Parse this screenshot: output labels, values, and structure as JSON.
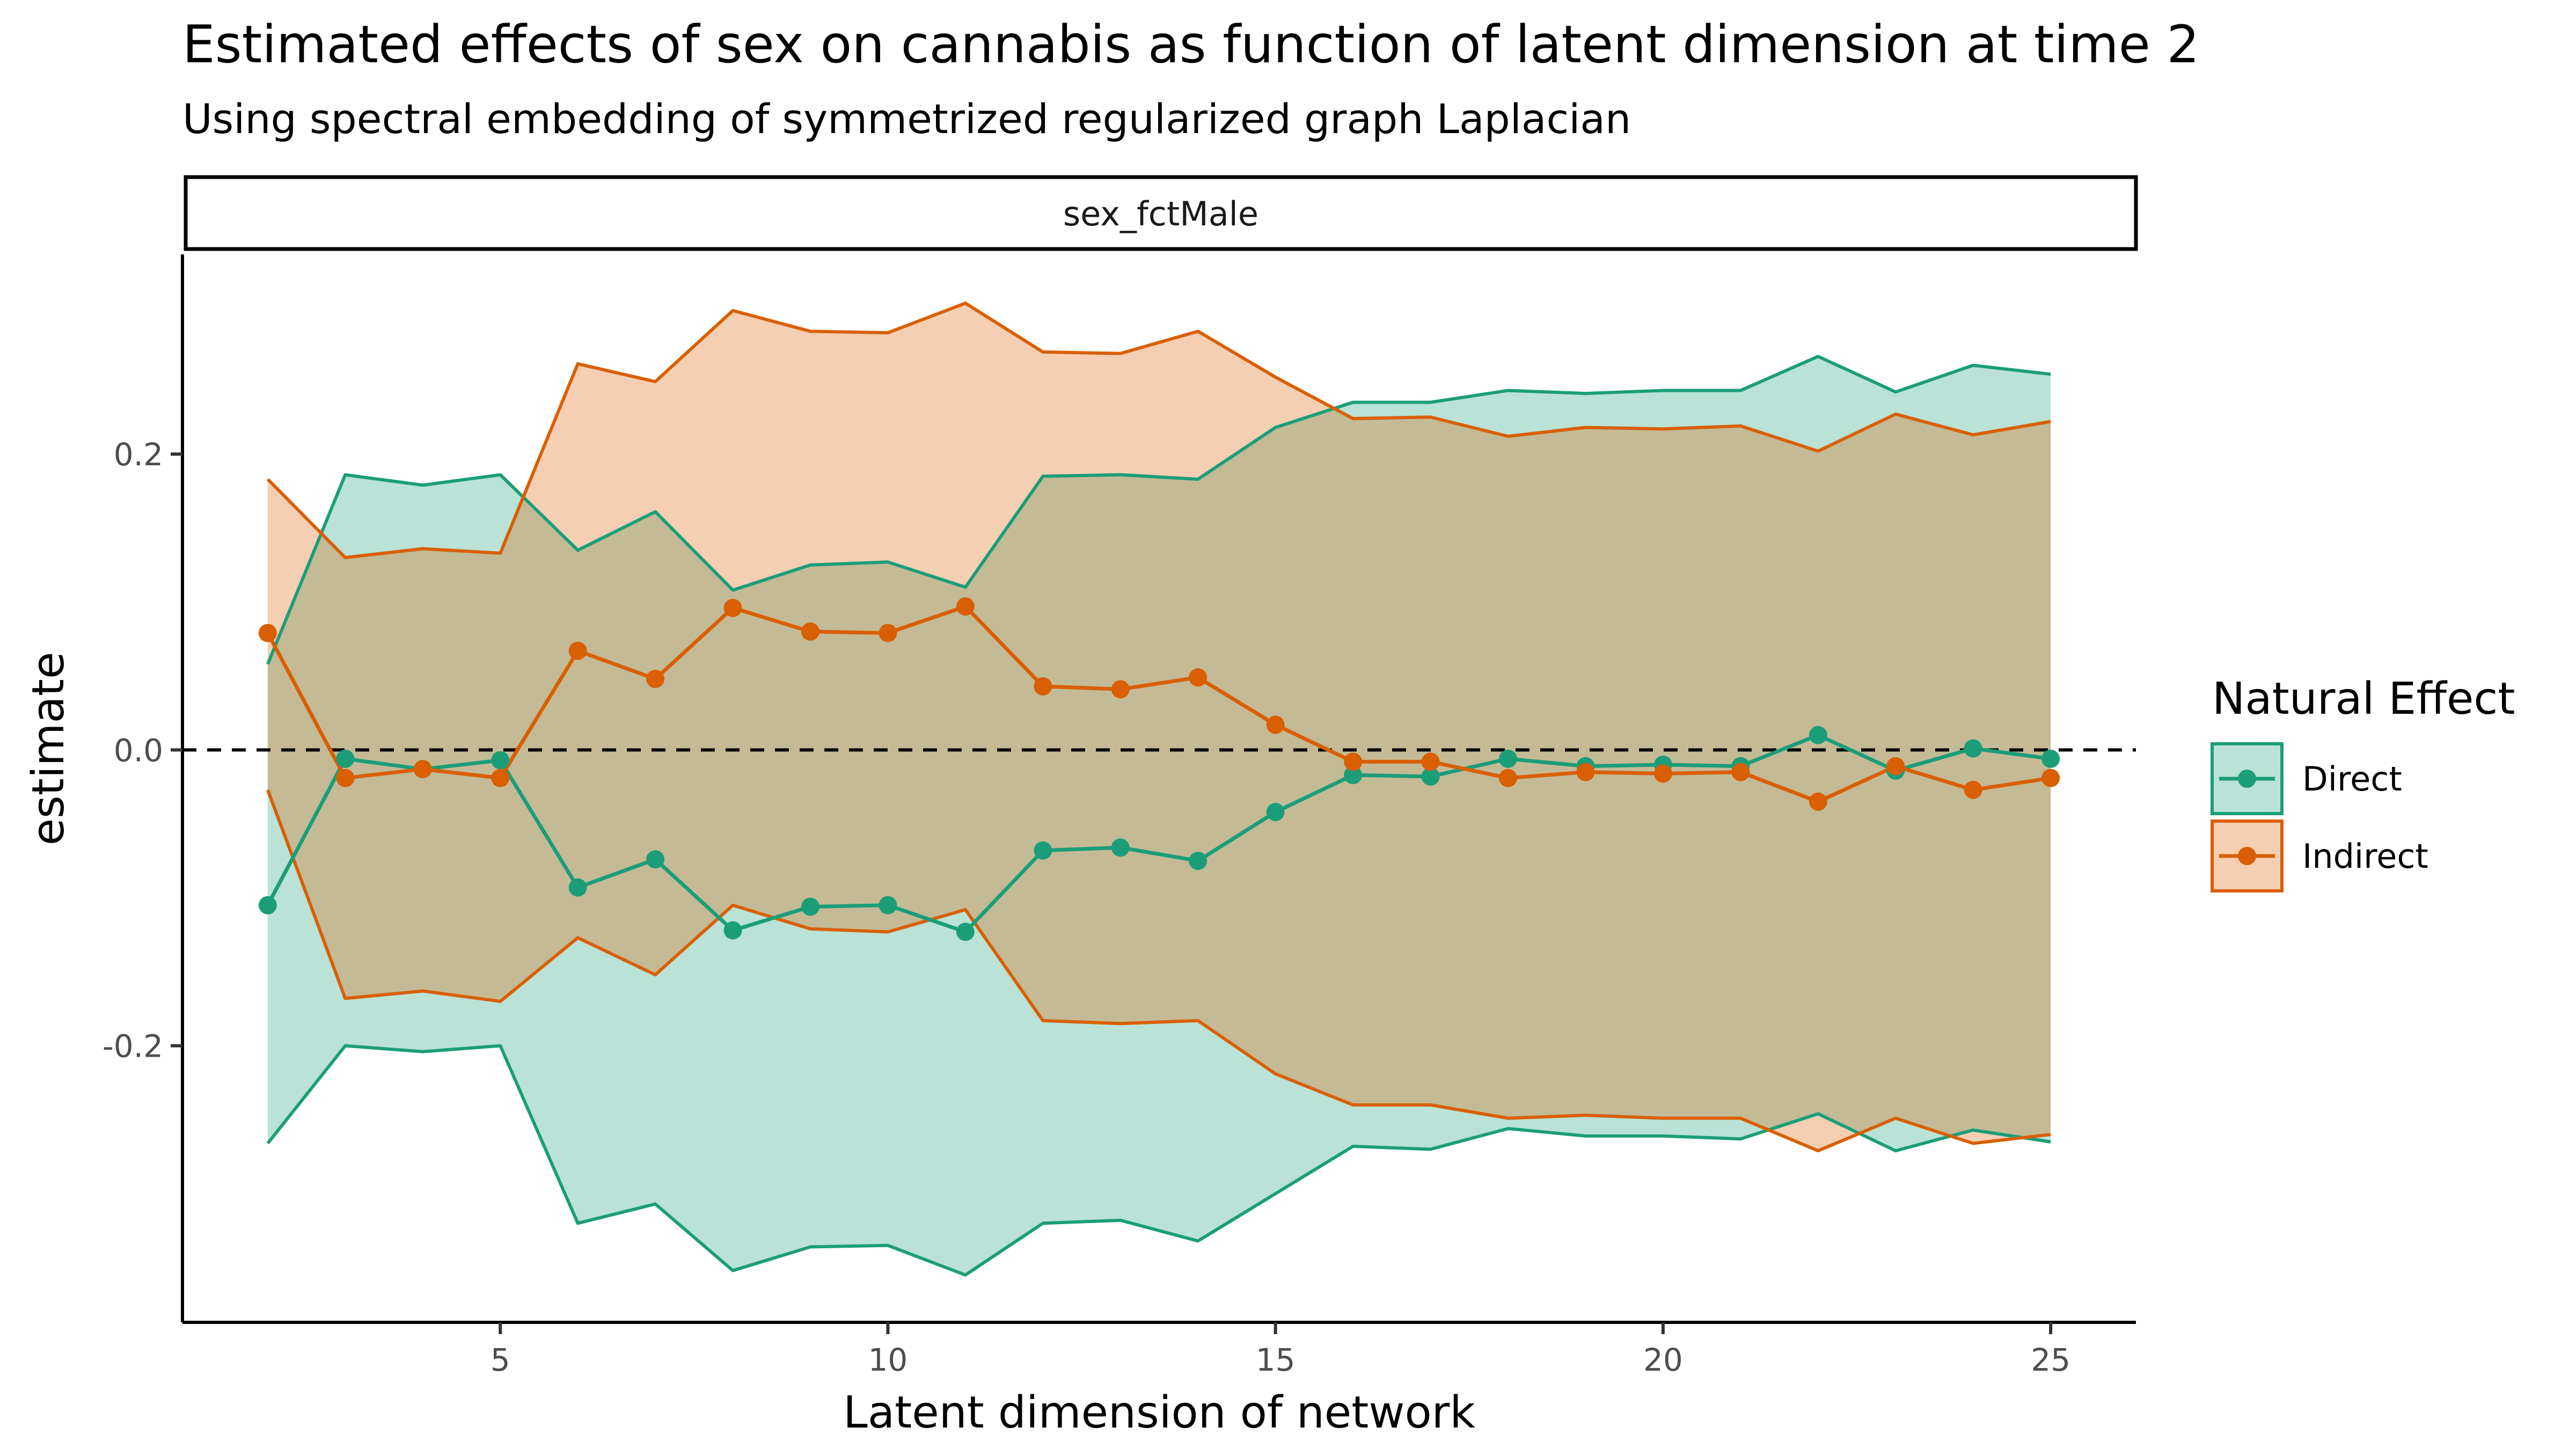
{
  "chart_data": {
    "type": "line",
    "title": "Estimated effects of sex on cannabis as function of latent dimension at time 2",
    "subtitle": "Using spectral embedding of symmetrized regularized graph Laplacian",
    "facet_label": "sex_fctMale",
    "xlabel": "Latent dimension of network",
    "ylabel": "estimate",
    "xlim": [
      0.9,
      26.1
    ],
    "ylim": [
      -0.387,
      0.335
    ],
    "x_ticks": [
      5,
      10,
      15,
      20,
      25
    ],
    "x_tick_labels": [
      "5",
      "10",
      "15",
      "20",
      "25"
    ],
    "y_ticks": [
      -0.2,
      0.0,
      0.2
    ],
    "y_tick_labels": [
      "-0.2",
      "0.0",
      "0.2"
    ],
    "reference_line": {
      "y": 0,
      "style": "dashed"
    },
    "grid": false,
    "legend": {
      "title": "Natural Effect",
      "position": "right"
    },
    "x": [
      2,
      3,
      4,
      5,
      6,
      7,
      8,
      9,
      10,
      11,
      12,
      13,
      14,
      15,
      16,
      17,
      18,
      19,
      20,
      21,
      22,
      23,
      24,
      25
    ],
    "series": [
      {
        "name": "Direct",
        "color": "#1b9e77",
        "fill": "#b9e2d7",
        "estimate": [
          -0.105,
          -0.006,
          -0.013,
          -0.007,
          -0.093,
          -0.074,
          -0.122,
          -0.106,
          -0.105,
          -0.123,
          -0.068,
          -0.066,
          -0.075,
          -0.042,
          -0.017,
          -0.018,
          -0.006,
          -0.011,
          -0.01,
          -0.011,
          0.01,
          -0.014,
          0.001,
          -0.006
        ],
        "lower": [
          -0.266,
          -0.2,
          -0.204,
          -0.2,
          -0.32,
          -0.307,
          -0.352,
          -0.336,
          -0.335,
          -0.355,
          -0.32,
          -0.318,
          -0.332,
          -0.3,
          -0.268,
          -0.27,
          -0.256,
          -0.261,
          -0.261,
          -0.263,
          -0.246,
          -0.271,
          -0.257,
          -0.265
        ],
        "upper": [
          0.058,
          0.186,
          0.179,
          0.186,
          0.135,
          0.161,
          0.108,
          0.125,
          0.127,
          0.11,
          0.185,
          0.186,
          0.183,
          0.218,
          0.235,
          0.235,
          0.243,
          0.241,
          0.243,
          0.243,
          0.266,
          0.242,
          0.26,
          0.254
        ]
      },
      {
        "name": "Indirect",
        "color": "#d95f02",
        "fill": "#f4ccb0",
        "estimate": [
          0.079,
          -0.019,
          -0.013,
          -0.019,
          0.067,
          0.048,
          0.096,
          0.08,
          0.079,
          0.097,
          0.043,
          0.041,
          0.049,
          0.017,
          -0.008,
          -0.008,
          -0.019,
          -0.015,
          -0.016,
          -0.015,
          -0.035,
          -0.011,
          -0.027,
          -0.019
        ],
        "lower": [
          -0.027,
          -0.168,
          -0.163,
          -0.17,
          -0.127,
          -0.152,
          -0.105,
          -0.121,
          -0.123,
          -0.108,
          -0.183,
          -0.185,
          -0.183,
          -0.219,
          -0.24,
          -0.24,
          -0.249,
          -0.247,
          -0.249,
          -0.249,
          -0.271,
          -0.249,
          -0.266,
          -0.26
        ],
        "upper": [
          0.183,
          0.13,
          0.136,
          0.133,
          0.261,
          0.249,
          0.297,
          0.283,
          0.282,
          0.302,
          0.269,
          0.268,
          0.283,
          0.252,
          0.224,
          0.225,
          0.212,
          0.218,
          0.217,
          0.219,
          0.202,
          0.227,
          0.213,
          0.222
        ]
      }
    ]
  }
}
